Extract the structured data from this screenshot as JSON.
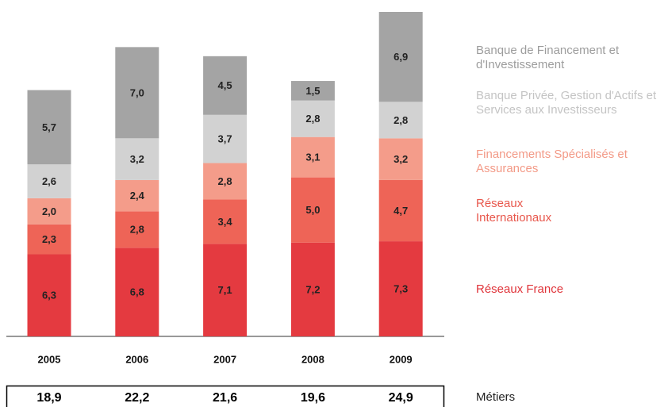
{
  "chart_data": {
    "type": "bar",
    "stacked": true,
    "categories": [
      "2005",
      "2006",
      "2007",
      "2008",
      "2009"
    ],
    "ylim": [
      0,
      25
    ],
    "series": [
      {
        "name": "Réseaux France",
        "color": "#e43a40",
        "values": [
          6.3,
          6.8,
          7.1,
          7.2,
          7.3
        ],
        "value_labels": [
          "6,3",
          "6,8",
          "7,1",
          "7,2",
          "7,3"
        ]
      },
      {
        "name": "Réseaux Internationaux",
        "color": "#ee6457",
        "values": [
          2.3,
          2.8,
          3.4,
          5.0,
          4.7
        ],
        "value_labels": [
          "2,3",
          "2,8",
          "3,4",
          "5,0",
          "4,7"
        ]
      },
      {
        "name": "Financements Spécialisés et Assurances",
        "color": "#f49c8a",
        "values": [
          2.0,
          2.4,
          2.8,
          3.1,
          3.2
        ],
        "value_labels": [
          "2,0",
          "2,4",
          "2,8",
          "3,1",
          "3,2"
        ]
      },
      {
        "name": "Banque Privée, Gestion d'Actifs et Services aux Investisseurs",
        "color": "#d2d2d2",
        "values": [
          2.6,
          3.2,
          3.7,
          2.8,
          2.8
        ],
        "value_labels": [
          "2,6",
          "3,2",
          "3,7",
          "2,8",
          "2,8"
        ]
      },
      {
        "name": "Banque de Financement et d'Investissement",
        "color": "#a4a4a4",
        "values": [
          5.7,
          7.0,
          4.5,
          1.5,
          6.9
        ],
        "value_labels": [
          "5,7",
          "7,0",
          "4,5",
          "1,5",
          "6,9"
        ]
      }
    ],
    "totals": {
      "name": "Métiers",
      "values": [
        18.9,
        22.2,
        21.6,
        19.6,
        24.9
      ],
      "value_labels": [
        "18,9",
        "22,2",
        "21,6",
        "19,6",
        "24,9"
      ]
    }
  }
}
